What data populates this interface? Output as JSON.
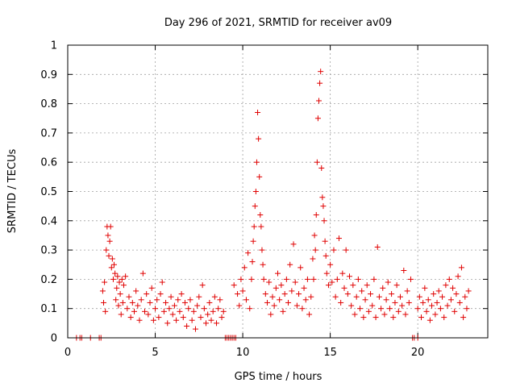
{
  "chart_data": {
    "type": "scatter",
    "title": "Day 296 of 2021, SRMTID for receiver av09",
    "xlabel": "GPS time / hours",
    "ylabel": "SRMTID / TECUs",
    "xlim": [
      0,
      24
    ],
    "ylim": [
      0,
      1
    ],
    "xticks": [
      0,
      5,
      10,
      15,
      20
    ],
    "xtick_labels": [
      "0",
      "5",
      "10",
      "15",
      "20"
    ],
    "yticks": [
      0,
      0.1,
      0.2,
      0.3,
      0.4,
      0.5,
      0.6,
      0.7,
      0.8,
      0.9,
      1
    ],
    "ytick_labels": [
      "0",
      "0.1",
      "0.2",
      "0.3",
      "0.4",
      "0.5",
      "0.6",
      "0.7",
      "0.8",
      "0.9",
      "1"
    ],
    "grid": true,
    "marker_color": "#e00000",
    "series": [
      {
        "name": "SRMTID",
        "marker": "+",
        "points": [
          [
            0.5,
            0
          ],
          [
            0.7,
            0
          ],
          [
            0.8,
            0
          ],
          [
            1.3,
            0
          ],
          [
            1.8,
            0
          ],
          [
            1.9,
            0
          ],
          [
            2.0,
            0.16
          ],
          [
            2.05,
            0.12
          ],
          [
            2.1,
            0.19
          ],
          [
            2.15,
            0.09
          ],
          [
            2.2,
            0.3
          ],
          [
            2.25,
            0.38
          ],
          [
            2.3,
            0.35
          ],
          [
            2.35,
            0.28
          ],
          [
            2.4,
            0.33
          ],
          [
            2.45,
            0.38
          ],
          [
            2.5,
            0.24
          ],
          [
            2.55,
            0.27
          ],
          [
            2.6,
            0.2
          ],
          [
            2.65,
            0.25
          ],
          [
            2.7,
            0.22
          ],
          [
            2.75,
            0.13
          ],
          [
            2.8,
            0.17
          ],
          [
            2.85,
            0.21
          ],
          [
            2.9,
            0.11
          ],
          [
            2.95,
            0.19
          ],
          [
            3.0,
            0.15
          ],
          [
            3.05,
            0.08
          ],
          [
            3.1,
            0.2
          ],
          [
            3.15,
            0.12
          ],
          [
            3.2,
            0.18
          ],
          [
            3.3,
            0.21
          ],
          [
            3.4,
            0.1
          ],
          [
            3.5,
            0.14
          ],
          [
            3.6,
            0.07
          ],
          [
            3.7,
            0.12
          ],
          [
            3.8,
            0.09
          ],
          [
            3.9,
            0.16
          ],
          [
            4.0,
            0.11
          ],
          [
            4.1,
            0.06
          ],
          [
            4.2,
            0.13
          ],
          [
            4.3,
            0.22
          ],
          [
            4.4,
            0.09
          ],
          [
            4.5,
            0.15
          ],
          [
            4.6,
            0.08
          ],
          [
            4.7,
            0.12
          ],
          [
            4.8,
            0.17
          ],
          [
            4.9,
            0.06
          ],
          [
            5.0,
            0.1
          ],
          [
            5.1,
            0.13
          ],
          [
            5.2,
            0.07
          ],
          [
            5.3,
            0.15
          ],
          [
            5.4,
            0.19
          ],
          [
            5.5,
            0.09
          ],
          [
            5.6,
            0.12
          ],
          [
            5.7,
            0.05
          ],
          [
            5.8,
            0.1
          ],
          [
            5.9,
            0.14
          ],
          [
            6.0,
            0.08
          ],
          [
            6.1,
            0.11
          ],
          [
            6.2,
            0.06
          ],
          [
            6.3,
            0.13
          ],
          [
            6.4,
            0.09
          ],
          [
            6.5,
            0.15
          ],
          [
            6.6,
            0.07
          ],
          [
            6.7,
            0.12
          ],
          [
            6.8,
            0.04
          ],
          [
            6.9,
            0.1
          ],
          [
            7.0,
            0.13
          ],
          [
            7.1,
            0.06
          ],
          [
            7.2,
            0.09
          ],
          [
            7.3,
            0.03
          ],
          [
            7.4,
            0.11
          ],
          [
            7.5,
            0.14
          ],
          [
            7.6,
            0.07
          ],
          [
            7.7,
            0.18
          ],
          [
            7.8,
            0.1
          ],
          [
            7.9,
            0.05
          ],
          [
            8.0,
            0.08
          ],
          [
            8.1,
            0.12
          ],
          [
            8.2,
            0.06
          ],
          [
            8.3,
            0.09
          ],
          [
            8.4,
            0.14
          ],
          [
            8.5,
            0.05
          ],
          [
            8.6,
            0.1
          ],
          [
            8.7,
            0.13
          ],
          [
            8.8,
            0.07
          ],
          [
            8.9,
            0.09
          ],
          [
            9.0,
            0
          ],
          [
            9.1,
            0
          ],
          [
            9.2,
            0
          ],
          [
            9.3,
            0
          ],
          [
            9.4,
            0
          ],
          [
            9.5,
            0
          ],
          [
            9.6,
            0
          ],
          [
            9.5,
            0.18
          ],
          [
            9.7,
            0.15
          ],
          [
            9.8,
            0.11
          ],
          [
            9.9,
            0.2
          ],
          [
            10.0,
            0.16
          ],
          [
            10.1,
            0.24
          ],
          [
            10.2,
            0.13
          ],
          [
            10.3,
            0.29
          ],
          [
            10.4,
            0.1
          ],
          [
            10.5,
            0.2
          ],
          [
            10.55,
            0.26
          ],
          [
            10.6,
            0.33
          ],
          [
            10.65,
            0.38
          ],
          [
            10.7,
            0.45
          ],
          [
            10.75,
            0.5
          ],
          [
            10.8,
            0.6
          ],
          [
            10.85,
            0.77
          ],
          [
            10.9,
            0.68
          ],
          [
            10.95,
            0.55
          ],
          [
            11.0,
            0.42
          ],
          [
            11.05,
            0.38
          ],
          [
            11.1,
            0.3
          ],
          [
            11.15,
            0.25
          ],
          [
            11.2,
            0.2
          ],
          [
            11.3,
            0.15
          ],
          [
            11.4,
            0.12
          ],
          [
            11.5,
            0.19
          ],
          [
            11.6,
            0.08
          ],
          [
            11.7,
            0.14
          ],
          [
            11.8,
            0.11
          ],
          [
            11.9,
            0.17
          ],
          [
            12.0,
            0.22
          ],
          [
            12.1,
            0.13
          ],
          [
            12.2,
            0.18
          ],
          [
            12.3,
            0.09
          ],
          [
            12.4,
            0.15
          ],
          [
            12.5,
            0.2
          ],
          [
            12.6,
            0.12
          ],
          [
            12.7,
            0.25
          ],
          [
            12.8,
            0.16
          ],
          [
            12.9,
            0.32
          ],
          [
            13.0,
            0.19
          ],
          [
            13.1,
            0.11
          ],
          [
            13.2,
            0.15
          ],
          [
            13.3,
            0.24
          ],
          [
            13.4,
            0.1
          ],
          [
            13.5,
            0.17
          ],
          [
            13.6,
            0.13
          ],
          [
            13.7,
            0.2
          ],
          [
            13.8,
            0.08
          ],
          [
            13.9,
            0.14
          ],
          [
            14.0,
            0.27
          ],
          [
            14.05,
            0.2
          ],
          [
            14.1,
            0.35
          ],
          [
            14.15,
            0.3
          ],
          [
            14.2,
            0.42
          ],
          [
            14.25,
            0.6
          ],
          [
            14.3,
            0.75
          ],
          [
            14.35,
            0.81
          ],
          [
            14.4,
            0.87
          ],
          [
            14.45,
            0.91
          ],
          [
            14.5,
            0.58
          ],
          [
            14.55,
            0.48
          ],
          [
            14.6,
            0.45
          ],
          [
            14.65,
            0.4
          ],
          [
            14.7,
            0.33
          ],
          [
            14.75,
            0.28
          ],
          [
            14.8,
            0.22
          ],
          [
            14.9,
            0.18
          ],
          [
            15.0,
            0.25
          ],
          [
            15.1,
            0.19
          ],
          [
            15.2,
            0.3
          ],
          [
            15.3,
            0.14
          ],
          [
            15.4,
            0.2
          ],
          [
            15.5,
            0.34
          ],
          [
            15.6,
            0.12
          ],
          [
            15.7,
            0.22
          ],
          [
            15.8,
            0.17
          ],
          [
            15.9,
            0.3
          ],
          [
            16.0,
            0.15
          ],
          [
            16.1,
            0.21
          ],
          [
            16.2,
            0.11
          ],
          [
            16.3,
            0.18
          ],
          [
            16.4,
            0.08
          ],
          [
            16.5,
            0.14
          ],
          [
            16.6,
            0.2
          ],
          [
            16.7,
            0.1
          ],
          [
            16.8,
            0.16
          ],
          [
            16.9,
            0.07
          ],
          [
            17.0,
            0.13
          ],
          [
            17.1,
            0.18
          ],
          [
            17.2,
            0.09
          ],
          [
            17.3,
            0.15
          ],
          [
            17.4,
            0.11
          ],
          [
            17.5,
            0.2
          ],
          [
            17.6,
            0.07
          ],
          [
            17.7,
            0.31
          ],
          [
            17.8,
            0.14
          ],
          [
            17.9,
            0.1
          ],
          [
            18.0,
            0.17
          ],
          [
            18.1,
            0.08
          ],
          [
            18.2,
            0.13
          ],
          [
            18.3,
            0.19
          ],
          [
            18.4,
            0.1
          ],
          [
            18.5,
            0.15
          ],
          [
            18.6,
            0.07
          ],
          [
            18.7,
            0.12
          ],
          [
            18.8,
            0.18
          ],
          [
            18.9,
            0.09
          ],
          [
            19.0,
            0.14
          ],
          [
            19.1,
            0.11
          ],
          [
            19.2,
            0.23
          ],
          [
            19.3,
            0.08
          ],
          [
            19.4,
            0.16
          ],
          [
            19.5,
            0.12
          ],
          [
            19.6,
            0.2
          ],
          [
            19.7,
            0
          ],
          [
            19.8,
            0
          ],
          [
            20.0,
            0
          ],
          [
            20.0,
            0.1
          ],
          [
            20.1,
            0.14
          ],
          [
            20.2,
            0.07
          ],
          [
            20.3,
            0.12
          ],
          [
            20.4,
            0.17
          ],
          [
            20.5,
            0.09
          ],
          [
            20.6,
            0.13
          ],
          [
            20.7,
            0.06
          ],
          [
            20.8,
            0.11
          ],
          [
            20.9,
            0.15
          ],
          [
            21.0,
            0.08
          ],
          [
            21.1,
            0.12
          ],
          [
            21.2,
            0.16
          ],
          [
            21.3,
            0.1
          ],
          [
            21.4,
            0.14
          ],
          [
            21.5,
            0.07
          ],
          [
            21.6,
            0.18
          ],
          [
            21.7,
            0.11
          ],
          [
            21.8,
            0.2
          ],
          [
            21.9,
            0.13
          ],
          [
            22.0,
            0.17
          ],
          [
            22.1,
            0.09
          ],
          [
            22.2,
            0.15
          ],
          [
            22.3,
            0.21
          ],
          [
            22.4,
            0.12
          ],
          [
            22.5,
            0.24
          ],
          [
            22.6,
            0.07
          ],
          [
            22.7,
            0.14
          ],
          [
            22.8,
            0.1
          ],
          [
            22.9,
            0.16
          ]
        ]
      }
    ]
  }
}
